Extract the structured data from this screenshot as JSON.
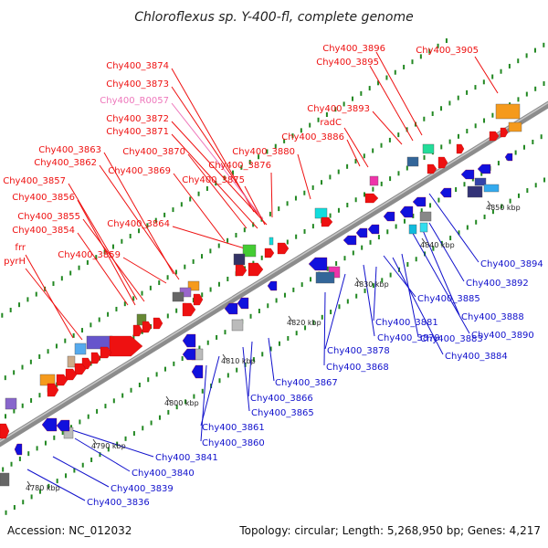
{
  "title": "Chloroflexus sp. Y-400-fl, complete genome",
  "footer": {
    "accession": "Accession: NC_012032",
    "summary": "Topology: circular; Length: 5,268,950 bp; Genes: 4,217"
  },
  "colors": {
    "backbone": "#8c8c8c",
    "upper_label": "#ee1111",
    "lower_label": "#1111cc",
    "rna_label": "#ee77bb",
    "grid_dot": "#228822"
  },
  "scale_labels": [
    "4780 kbp",
    "4790 kbp",
    "4800 kbp",
    "4810 kbp",
    "4820 kbp",
    "4830 kbp",
    "4840 kbp",
    "4850 kbp"
  ],
  "upper_labels": [
    "Chy400_3874",
    "Chy400_3873",
    "Chy400_R0057",
    "Chy400_3872",
    "Chy400_3871",
    "Chy400_3870",
    "Chy400_3876",
    "Chy400_3875",
    "Chy400_3880",
    "Chy400_3886",
    "Chy400_3869",
    "Chy400_3863",
    "Chy400_3862",
    "Chy400_3857",
    "Chy400_3856",
    "Chy400_3855",
    "Chy400_3854",
    "Chy400_3864",
    "Chy400_3859",
    "frr",
    "pyrH",
    "Chy400_3896",
    "Chy400_3895",
    "Chy400_3905",
    "Chy400_3893",
    "radC"
  ],
  "lower_labels": [
    "Chy400_3894",
    "Chy400_3892",
    "Chy400_3888",
    "Chy400_3890",
    "Chy400_3884",
    "Chy400_3885",
    "Chy400_3883",
    "Chy400_3881",
    "Chy400_3879",
    "Chy400_3878",
    "Chy400_3868",
    "Chy400_3867",
    "Chy400_3866",
    "Chy400_3865",
    "Chy400_3861",
    "Chy400_3860",
    "Chy400_3841",
    "Chy400_3840",
    "Chy400_3839",
    "Chy400_3836"
  ]
}
